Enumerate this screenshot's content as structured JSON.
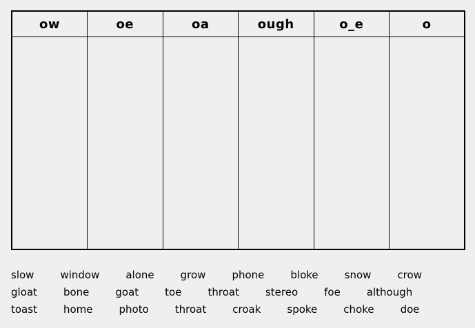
{
  "colors": {
    "background": "#efefed",
    "table_border": "#000000",
    "text": "#000000"
  },
  "sorting_table": {
    "headers": [
      "ow",
      "oe",
      "oa",
      "ough",
      "o_e",
      "o"
    ]
  },
  "word_bank": {
    "rows": [
      [
        "slow",
        "window",
        "alone",
        "grow",
        "phone",
        "bloke",
        "snow",
        "crow"
      ],
      [
        "gloat",
        "bone",
        "goat",
        "toe",
        "throat",
        "stereo",
        "foe",
        "although"
      ],
      [
        "toast",
        "home",
        "photo",
        "throat",
        "croak",
        "spoke",
        "choke",
        "doe"
      ]
    ]
  }
}
